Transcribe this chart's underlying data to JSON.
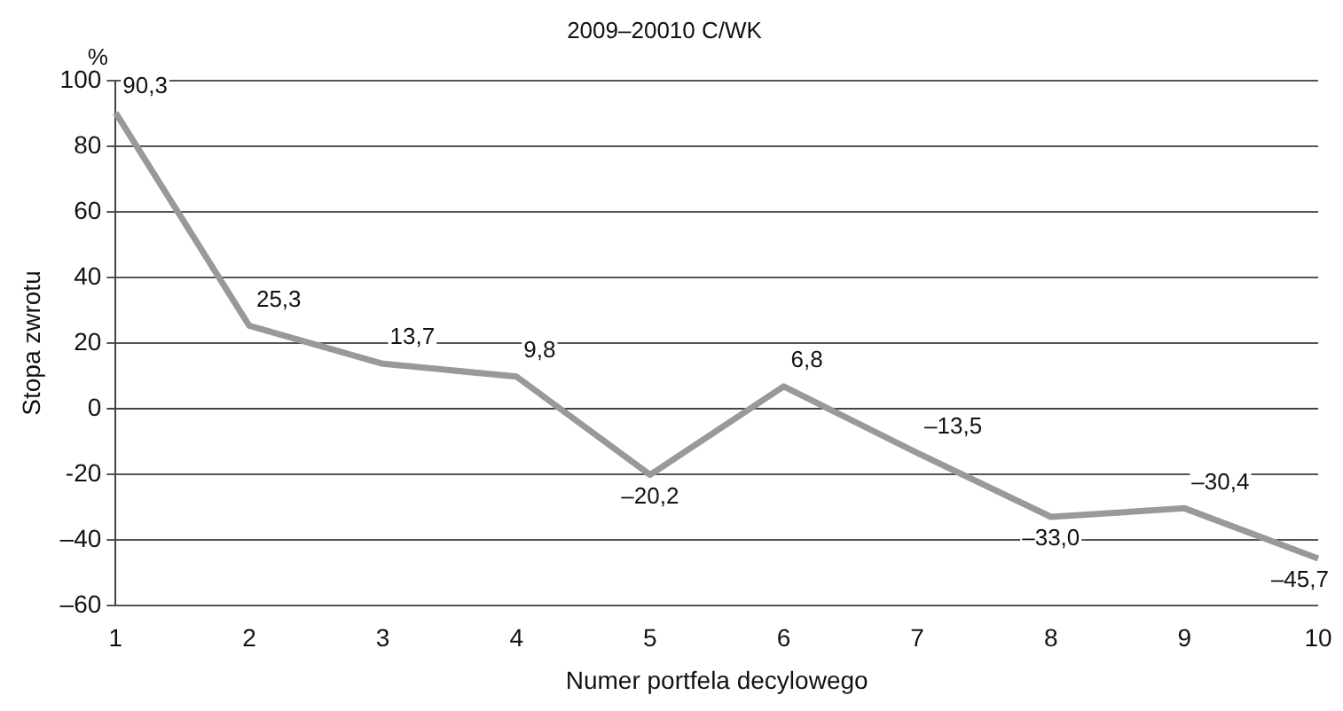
{
  "chart_data": {
    "type": "line",
    "title": "2009–20010 C/WK",
    "xlabel": "Numer portfela decylowego",
    "ylabel": "Stopa zwrotu",
    "annotations": [
      "%"
    ],
    "categories": [
      "1",
      "2",
      "3",
      "4",
      "5",
      "6",
      "7",
      "8",
      "9",
      "10"
    ],
    "series": [
      {
        "color": "#999999",
        "values": [
          90.3,
          25.3,
          13.7,
          9.8,
          -20.2,
          6.8,
          -13.5,
          -33.0,
          -30.4,
          -45.7
        ],
        "value_labels": [
          "90,3",
          "25,3",
          "13,7",
          "9,8",
          "–20,2",
          "6,8",
          "–13,5",
          "–33,0",
          "–30,4",
          "–45,7"
        ]
      }
    ],
    "ylim": [
      -60,
      100
    ],
    "yticks": [
      {
        "value": -60,
        "label": "–60"
      },
      {
        "value": -40,
        "label": "–40"
      },
      {
        "value": -20,
        "label": "-20"
      },
      0,
      20,
      40,
      60,
      80,
      100
    ],
    "grid": "y",
    "legend": false,
    "marker": "none",
    "line_style": "solid"
  }
}
